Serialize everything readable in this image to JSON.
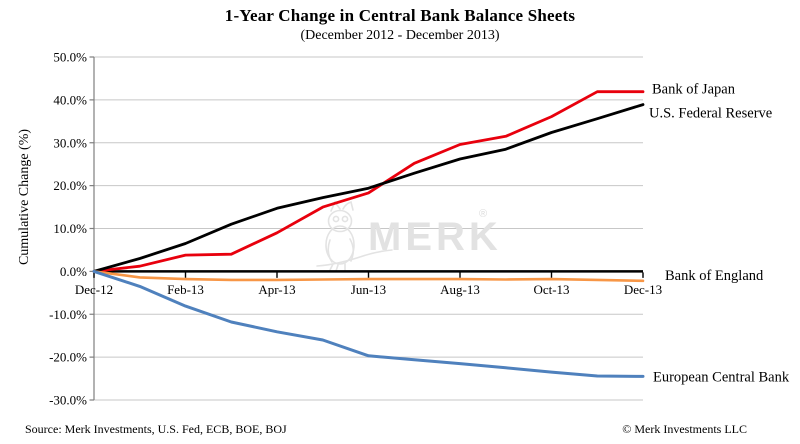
{
  "title": "1-Year Change in Central Bank Balance Sheets",
  "subtitle": "(December 2012 - December 2013)",
  "source": "Source: Merk Investments, U.S. Fed, ECB, BOE, BOJ",
  "copyright": "© Merk Investments LLC",
  "watermark": {
    "text": "MERK",
    "registered": "®"
  },
  "chart_data": {
    "type": "line",
    "title": "1-Year Change in Central Bank Balance Sheets",
    "subtitle": "(December 2012 - December 2013)",
    "xlabel": "",
    "ylabel": "Cumulative Change (%)",
    "ylim": [
      -30,
      50
    ],
    "grid": true,
    "legend_position": "line-end-labels-right",
    "x": [
      "Dec-12",
      "Jan-13",
      "Feb-13",
      "Mar-13",
      "Apr-13",
      "May-13",
      "Jun-13",
      "Jul-13",
      "Aug-13",
      "Sep-13",
      "Oct-13",
      "Nov-13",
      "Dec-13"
    ],
    "x_tick_labels": [
      "Dec-12",
      "Feb-13",
      "Apr-13",
      "Jun-13",
      "Aug-13",
      "Oct-13",
      "Dec-13"
    ],
    "y_ticks": [
      {
        "value": 50,
        "label": "50.0%"
      },
      {
        "value": 40,
        "label": "40.0%"
      },
      {
        "value": 30,
        "label": "30.0%"
      },
      {
        "value": 20,
        "label": "20.0%"
      },
      {
        "value": 10,
        "label": "10.0%"
      },
      {
        "value": 0,
        "label": "0.0%"
      },
      {
        "value": -10,
        "label": "-10.0%"
      },
      {
        "value": -20,
        "label": "-20.0%"
      },
      {
        "value": -30,
        "label": "-30.0%"
      }
    ],
    "series": [
      {
        "name": "Bank of Japan",
        "color": "#e8000d",
        "values": [
          0,
          1.2,
          3.8,
          4.0,
          9.0,
          15.0,
          18.3,
          25.2,
          29.6,
          31.5,
          36.1,
          41.9,
          41.9
        ]
      },
      {
        "name": "U.S. Federal Reserve",
        "color": "#000000",
        "values": [
          0,
          3.0,
          6.5,
          11.0,
          14.7,
          17.2,
          19.4,
          22.9,
          26.2,
          28.5,
          32.4,
          35.6,
          38.9
        ]
      },
      {
        "name": "Bank of England",
        "color": "#f79646",
        "values": [
          0,
          -1.4,
          -1.8,
          -2.0,
          -2.0,
          -1.9,
          -1.8,
          -1.8,
          -1.8,
          -1.9,
          -1.8,
          -2.0,
          -2.2
        ]
      },
      {
        "name": "European Central Bank",
        "color": "#4f81bd",
        "values": [
          0,
          -3.5,
          -8.1,
          -11.8,
          -14.1,
          -16.0,
          -19.7,
          -20.6,
          -21.5,
          -22.5,
          -23.5,
          -24.4,
          -24.5
        ]
      }
    ]
  }
}
